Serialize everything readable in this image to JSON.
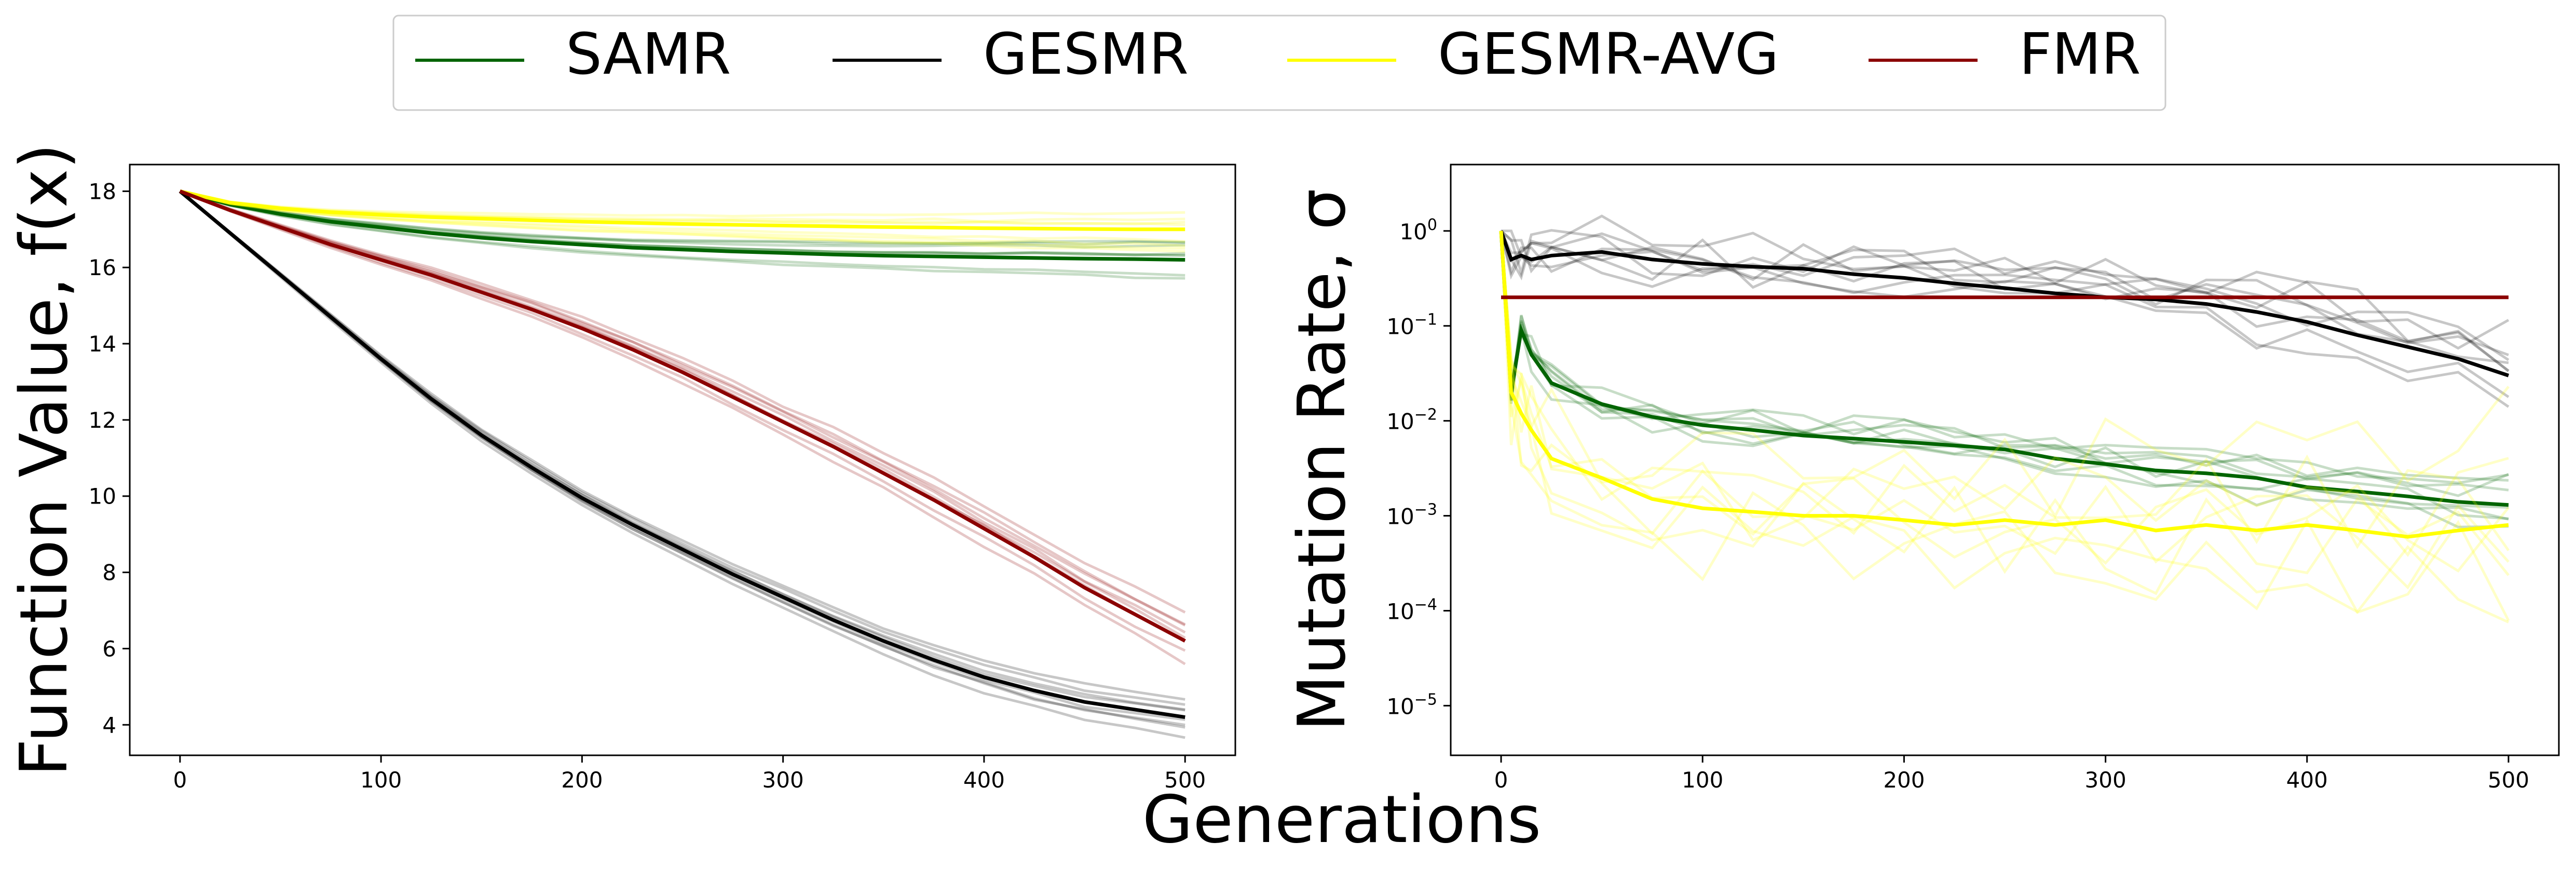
{
  "figure": {
    "xlabel": "Generations"
  },
  "legend": {
    "position": "top-center",
    "entries": [
      {
        "label": "SAMR",
        "color": "#006400"
      },
      {
        "label": "GESMR",
        "color": "#000000"
      },
      {
        "label": "GESMR-AVG",
        "color": "#ffff00"
      },
      {
        "label": "FMR",
        "color": "#8b0000"
      }
    ]
  },
  "chart_data": [
    {
      "type": "line",
      "ylabel": "Function Value, f(x)",
      "xlim": [
        -25,
        525
      ],
      "ylim": [
        3.2,
        18.7
      ],
      "x_ticks": [
        0,
        100,
        200,
        300,
        400,
        500
      ],
      "y_ticks": [
        4,
        6,
        8,
        10,
        12,
        14,
        16,
        18
      ],
      "y_scale": "linear",
      "grid": false,
      "x": [
        0,
        25,
        50,
        75,
        100,
        125,
        150,
        175,
        200,
        225,
        250,
        275,
        300,
        325,
        350,
        375,
        400,
        425,
        450,
        475,
        500
      ],
      "series": [
        {
          "name": "SAMR",
          "color": "#006400",
          "band": 0.25,
          "mean": [
            18.0,
            17.65,
            17.4,
            17.2,
            17.05,
            16.9,
            16.78,
            16.68,
            16.6,
            16.52,
            16.47,
            16.42,
            16.38,
            16.34,
            16.31,
            16.29,
            16.27,
            16.25,
            16.23,
            16.22,
            16.2
          ]
        },
        {
          "name": "GESMR",
          "color": "#000000",
          "band": 0.35,
          "mean": [
            18.0,
            16.9,
            15.8,
            14.7,
            13.6,
            12.55,
            11.6,
            10.75,
            9.95,
            9.25,
            8.6,
            7.95,
            7.35,
            6.75,
            6.2,
            5.7,
            5.25,
            4.9,
            4.6,
            4.4,
            4.2
          ]
        },
        {
          "name": "GESMR-AVG",
          "color": "#ffff00",
          "band": 0.3,
          "mean": [
            18.0,
            17.7,
            17.55,
            17.45,
            17.38,
            17.32,
            17.28,
            17.24,
            17.2,
            17.17,
            17.14,
            17.12,
            17.1,
            17.08,
            17.06,
            17.05,
            17.03,
            17.02,
            17.01,
            17.0,
            17.0
          ]
        },
        {
          "name": "FMR",
          "color": "#8b0000",
          "band": 0.45,
          "mean": [
            18.0,
            17.5,
            17.05,
            16.6,
            16.2,
            15.8,
            15.35,
            14.9,
            14.4,
            13.85,
            13.25,
            12.6,
            11.95,
            11.3,
            10.6,
            9.9,
            9.15,
            8.4,
            7.6,
            6.9,
            6.2
          ]
        }
      ]
    },
    {
      "type": "line",
      "ylabel": "Mutation Rate, σ",
      "xlim": [
        -25,
        525
      ],
      "ylim": [
        3e-06,
        5
      ],
      "x_ticks": [
        0,
        100,
        200,
        300,
        400,
        500
      ],
      "y_scale": "log",
      "y_ticks": [
        1e-05,
        0.0001,
        0.001,
        0.01,
        0.1,
        1
      ],
      "y_tick_exponents": [
        "-5",
        "-4",
        "-3",
        "-2",
        "-1",
        "0"
      ],
      "y_tick_base": "10",
      "grid": false,
      "x": [
        0,
        5,
        10,
        15,
        25,
        50,
        75,
        100,
        125,
        150,
        175,
        200,
        225,
        250,
        275,
        300,
        325,
        350,
        375,
        400,
        425,
        450,
        475,
        500
      ],
      "series": [
        {
          "name": "SAMR",
          "color": "#006400",
          "band_log": 0.35,
          "mean": [
            1.0,
            0.02,
            0.09,
            0.05,
            0.025,
            0.015,
            0.011,
            0.009,
            0.008,
            0.007,
            0.0065,
            0.006,
            0.0055,
            0.005,
            0.004,
            0.0035,
            0.003,
            0.0028,
            0.0025,
            0.002,
            0.0018,
            0.0016,
            0.0014,
            0.0013
          ]
        },
        {
          "name": "GESMR",
          "color": "#000000",
          "band_log": 0.6,
          "mean": [
            1.0,
            0.5,
            0.55,
            0.5,
            0.55,
            0.6,
            0.5,
            0.45,
            0.42,
            0.4,
            0.35,
            0.32,
            0.28,
            0.25,
            0.22,
            0.2,
            0.19,
            0.17,
            0.14,
            0.11,
            0.08,
            0.06,
            0.045,
            0.03
          ]
        },
        {
          "name": "GESMR-AVG",
          "color": "#ffff00",
          "band_log": 1.4,
          "mean": [
            1.0,
            0.02,
            0.012,
            0.008,
            0.004,
            0.0025,
            0.0015,
            0.0012,
            0.0011,
            0.001,
            0.001,
            0.0009,
            0.0008,
            0.0009,
            0.0008,
            0.0009,
            0.0007,
            0.0008,
            0.0007,
            0.0008,
            0.0007,
            0.0006,
            0.0007,
            0.0008
          ]
        },
        {
          "name": "FMR",
          "color": "#8b0000",
          "band_log": 0,
          "mean": [
            0.2,
            0.2,
            0.2,
            0.2,
            0.2,
            0.2,
            0.2,
            0.2,
            0.2,
            0.2,
            0.2,
            0.2,
            0.2,
            0.2,
            0.2,
            0.2,
            0.2,
            0.2,
            0.2,
            0.2,
            0.2,
            0.2,
            0.2,
            0.2
          ]
        }
      ]
    }
  ]
}
